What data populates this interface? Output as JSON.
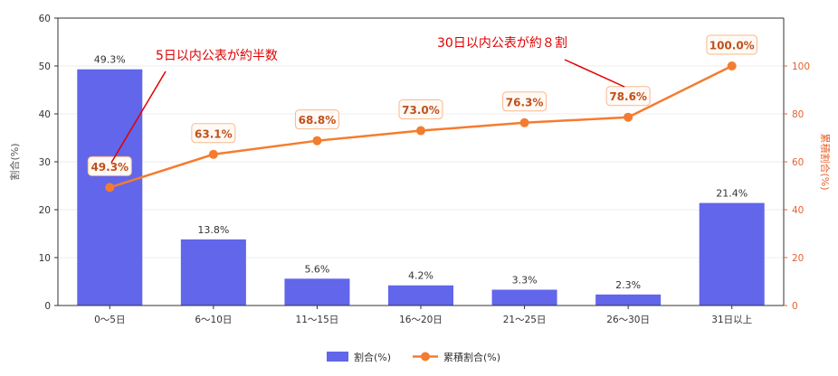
{
  "chart_data": {
    "type": "bar",
    "categories": [
      "0〜5日",
      "6〜10日",
      "11〜15日",
      "16〜20日",
      "21〜25日",
      "26〜30日",
      "31日以上"
    ],
    "series": [
      {
        "name": "割合(%)",
        "type": "bar",
        "axis": "left",
        "color": "#6166ea",
        "values": [
          49.3,
          13.8,
          5.6,
          4.2,
          3.3,
          2.3,
          21.4
        ],
        "labels": [
          "49.3%",
          "13.8%",
          "5.6%",
          "4.2%",
          "3.3%",
          "2.3%",
          "21.4%"
        ]
      },
      {
        "name": "累積割合(%)",
        "type": "line",
        "axis": "right",
        "color": "#f47c30",
        "values": [
          49.3,
          63.1,
          68.8,
          73.0,
          76.3,
          78.6,
          100.0
        ],
        "labels": [
          "49.3%",
          "63.1%",
          "68.8%",
          "73.0%",
          "76.3%",
          "78.6%",
          "100.0%"
        ]
      }
    ],
    "ylabel": "割合(%)",
    "ylabel_right": "累積割合(%)",
    "ylim": [
      0,
      60
    ],
    "yticks": [
      0,
      10,
      20,
      30,
      40,
      50,
      60
    ],
    "ylim_right": [
      0,
      120
    ],
    "yticks_right": [
      0,
      20,
      40,
      60,
      80,
      100
    ],
    "grid": true,
    "legend": "bottom-center",
    "annotations": [
      {
        "text": "5日以内公表が約半数",
        "points_to_category": "0〜5日"
      },
      {
        "text": "30日以内公表が約８割",
        "points_to_category": "26〜30日"
      }
    ]
  }
}
